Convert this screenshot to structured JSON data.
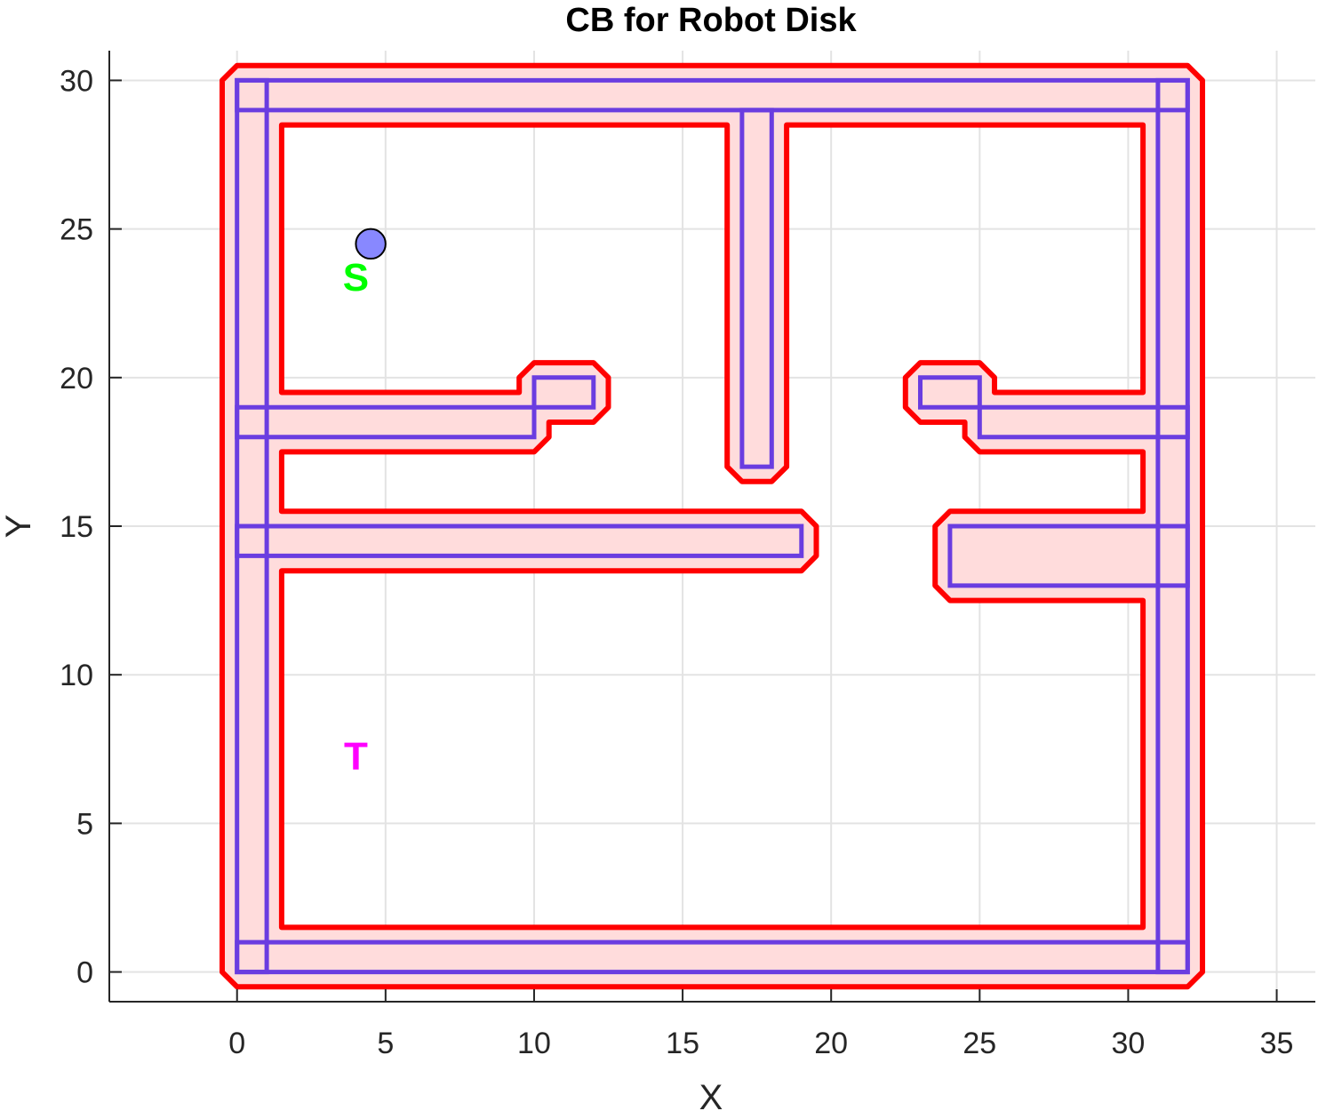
{
  "chart_data": {
    "type": "line",
    "title": "CB for Robot Disk",
    "xlabel": "X",
    "ylabel": "Y",
    "xlim": [
      -4.3,
      36.3
    ],
    "ylim": [
      -1,
      31
    ],
    "xticks": [
      0,
      5,
      10,
      15,
      20,
      25,
      30,
      35
    ],
    "yticks": [
      0,
      5,
      10,
      15,
      20,
      25,
      30
    ],
    "grid": true,
    "colors": {
      "obstacle_edge": "#6a3de0",
      "cspace_edge": "#ff0000",
      "cspace_fill": "#ffdcdc",
      "robot_fill": "#8888ff",
      "start_label": "#00ff00",
      "target_label": "#ff00ff"
    },
    "robot_radius": 0.5,
    "cspace_region": {
      "outer": [
        [
          0,
          -0.5
        ],
        [
          32,
          -0.5
        ],
        [
          32.5,
          0
        ],
        [
          32.5,
          30
        ],
        [
          32,
          30.5
        ],
        [
          0,
          30.5
        ],
        [
          -0.5,
          30
        ],
        [
          -0.5,
          0
        ]
      ],
      "holes": [
        [
          [
            1.5,
            1.5
          ],
          [
            30.5,
            1.5
          ],
          [
            30.5,
            12.5
          ],
          [
            24,
            12.5
          ],
          [
            23.5,
            13
          ],
          [
            23.5,
            15
          ],
          [
            24,
            15.5
          ],
          [
            30.5,
            15.5
          ],
          [
            30.5,
            17.5
          ],
          [
            25,
            17.5
          ],
          [
            24.5,
            18
          ],
          [
            24.5,
            18.5
          ],
          [
            23,
            18.5
          ],
          [
            22.5,
            19
          ],
          [
            22.5,
            20
          ],
          [
            23,
            20.5
          ],
          [
            25,
            20.5
          ],
          [
            25.5,
            20
          ],
          [
            25.5,
            19.5
          ],
          [
            30.5,
            19.5
          ],
          [
            30.5,
            28.5
          ],
          [
            18.5,
            28.5
          ],
          [
            18.5,
            17
          ],
          [
            18,
            16.5
          ],
          [
            17,
            16.5
          ],
          [
            16.5,
            17
          ],
          [
            16.5,
            28.5
          ],
          [
            1.5,
            28.5
          ],
          [
            1.5,
            19.5
          ],
          [
            9.5,
            19.5
          ],
          [
            9.5,
            20
          ],
          [
            10,
            20.5
          ],
          [
            12,
            20.5
          ],
          [
            12.5,
            20
          ],
          [
            12.5,
            19
          ],
          [
            12,
            18.5
          ],
          [
            10.5,
            18.5
          ],
          [
            10.5,
            18
          ],
          [
            10,
            17.5
          ],
          [
            1.5,
            17.5
          ],
          [
            1.5,
            15.5
          ],
          [
            19,
            15.5
          ],
          [
            19.5,
            15
          ],
          [
            19.5,
            14
          ],
          [
            19,
            13.5
          ],
          [
            1.5,
            13.5
          ]
        ]
      ]
    },
    "obstacles": [
      [
        [
          0,
          0
        ],
        [
          32,
          0
        ],
        [
          32,
          1
        ],
        [
          0,
          1
        ]
      ],
      [
        [
          0,
          29
        ],
        [
          32,
          29
        ],
        [
          32,
          30
        ],
        [
          0,
          30
        ]
      ],
      [
        [
          0,
          0
        ],
        [
          1,
          0
        ],
        [
          1,
          30
        ],
        [
          0,
          30
        ]
      ],
      [
        [
          31,
          0
        ],
        [
          32,
          0
        ],
        [
          32,
          30
        ],
        [
          31,
          30
        ]
      ],
      [
        [
          17,
          17
        ],
        [
          18,
          17
        ],
        [
          18,
          29
        ],
        [
          17,
          29
        ]
      ],
      [
        [
          0,
          18
        ],
        [
          10,
          18
        ],
        [
          10,
          19
        ],
        [
          0,
          19
        ]
      ],
      [
        [
          10,
          18
        ],
        [
          10,
          20
        ],
        [
          12,
          20
        ],
        [
          12,
          19
        ],
        [
          10,
          19
        ]
      ],
      [
        [
          0,
          14
        ],
        [
          19,
          14
        ],
        [
          19,
          15
        ],
        [
          0,
          15
        ]
      ],
      [
        [
          25,
          18
        ],
        [
          32,
          18
        ],
        [
          32,
          19
        ],
        [
          25,
          19
        ]
      ],
      [
        [
          23,
          19
        ],
        [
          25,
          19
        ],
        [
          25,
          20
        ],
        [
          23,
          20
        ]
      ],
      [
        [
          24,
          13
        ],
        [
          32,
          13
        ],
        [
          32,
          15
        ],
        [
          24,
          15
        ]
      ]
    ],
    "robot": {
      "x": 4.5,
      "y": 24.5
    },
    "labels": [
      {
        "text": "S",
        "x": 4,
        "y": 23.4,
        "color": "#00ff00"
      },
      {
        "text": "T",
        "x": 4,
        "y": 7.3,
        "color": "#ff00ff"
      }
    ]
  }
}
